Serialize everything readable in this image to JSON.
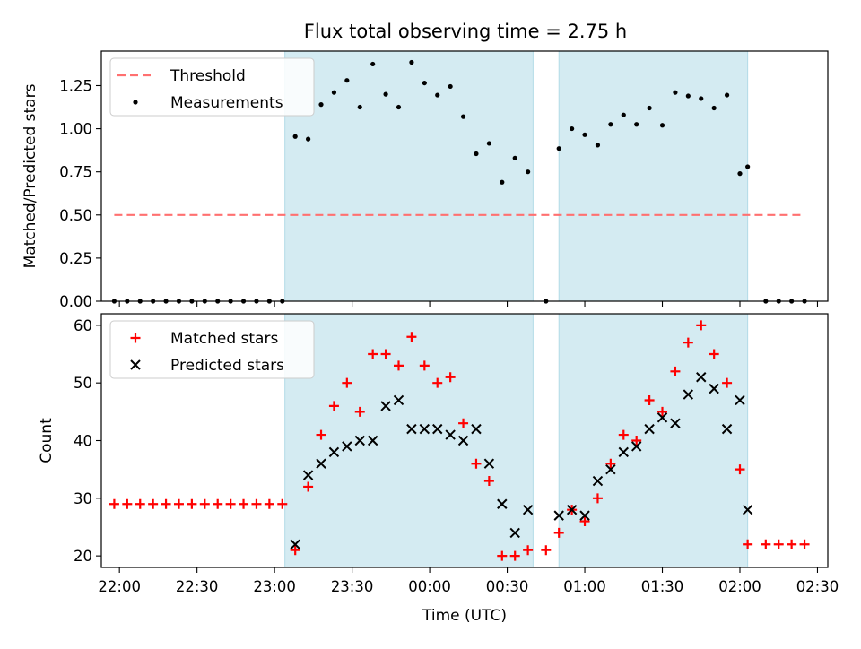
{
  "title": "Flux total observing time = 2.75 h",
  "colors": {
    "shade": "#add8e6",
    "threshold": "#ff7070",
    "measurement": "#000000",
    "matched": "#ff0000",
    "predicted": "#000000"
  },
  "chart_data": [
    {
      "type": "scatter",
      "ylabel": "Matched/Predicted stars",
      "ylim": [
        0,
        1.45
      ],
      "yticks": [
        0.0,
        0.25,
        0.5,
        0.75,
        1.0,
        1.25
      ],
      "yticklabels": [
        "0.00",
        "0.25",
        "0.50",
        "0.75",
        "1.00",
        "1.25"
      ],
      "xlim": [
        "21:53",
        "02:34"
      ],
      "shaded_intervals": [
        [
          "23:04",
          "00:40"
        ],
        [
          "00:50",
          "02:03"
        ]
      ],
      "threshold": {
        "name": "Threshold",
        "value": 0.5,
        "x": [
          "21:58",
          "02:24"
        ]
      },
      "legend": [
        "Threshold",
        "Measurements"
      ],
      "legend_location": "upper left",
      "series": [
        {
          "name": "Measurements",
          "marker": "dot",
          "x": [
            "21:58",
            "22:03",
            "22:08",
            "22:13",
            "22:18",
            "22:23",
            "22:28",
            "22:33",
            "22:38",
            "22:43",
            "22:48",
            "22:53",
            "22:58",
            "23:03",
            "23:08",
            "23:13",
            "23:18",
            "23:23",
            "23:28",
            "23:33",
            "23:38",
            "23:43",
            "23:48",
            "23:53",
            "23:58",
            "00:03",
            "00:08",
            "00:13",
            "00:18",
            "00:23",
            "00:28",
            "00:33",
            "00:38",
            "00:45",
            "00:50",
            "00:55",
            "01:00",
            "01:05",
            "01:10",
            "01:15",
            "01:20",
            "01:25",
            "01:30",
            "01:35",
            "01:40",
            "01:45",
            "01:50",
            "01:55",
            "02:00",
            "02:03",
            "02:10",
            "02:15",
            "02:20",
            "02:25"
          ],
          "y": [
            0,
            0,
            0,
            0,
            0,
            0,
            0,
            0,
            0,
            0,
            0,
            0,
            0,
            0,
            0.955,
            0.94,
            1.14,
            1.21,
            1.28,
            1.125,
            1.375,
            1.2,
            1.125,
            1.385,
            1.265,
            1.195,
            1.245,
            1.07,
            0.855,
            0.915,
            0.69,
            0.83,
            0.75,
            0,
            0.885,
            1.0,
            0.965,
            0.905,
            1.025,
            1.08,
            1.025,
            1.12,
            1.02,
            1.21,
            1.19,
            1.175,
            1.12,
            1.195,
            0.74,
            0.78,
            0,
            0,
            0,
            0
          ]
        }
      ]
    },
    {
      "type": "scatter",
      "xlabel": "Time (UTC)",
      "ylabel": "Count",
      "ylim": [
        18,
        62
      ],
      "yticks": [
        20,
        30,
        40,
        50,
        60
      ],
      "yticklabels": [
        "20",
        "30",
        "40",
        "50",
        "60"
      ],
      "xlim": [
        "21:53",
        "02:34"
      ],
      "xticks": [
        "22:00",
        "22:30",
        "23:00",
        "23:30",
        "00:00",
        "00:30",
        "01:00",
        "01:30",
        "02:00",
        "02:30"
      ],
      "xticklabels": [
        "22:00",
        "22:30",
        "23:00",
        "23:30",
        "00:00",
        "00:30",
        "01:00",
        "01:30",
        "02:00",
        "02:30"
      ],
      "shaded_intervals": [
        [
          "23:04",
          "00:40"
        ],
        [
          "00:50",
          "02:03"
        ]
      ],
      "legend": [
        "Matched stars",
        "Predicted stars"
      ],
      "legend_location": "upper left",
      "series": [
        {
          "name": "Matched stars",
          "marker": "plus",
          "x": [
            "21:58",
            "22:03",
            "22:08",
            "22:13",
            "22:18",
            "22:23",
            "22:28",
            "22:33",
            "22:38",
            "22:43",
            "22:48",
            "22:53",
            "22:58",
            "23:03",
            "23:08",
            "23:13",
            "23:18",
            "23:23",
            "23:28",
            "23:33",
            "23:38",
            "23:43",
            "23:48",
            "23:53",
            "23:58",
            "00:03",
            "00:08",
            "00:13",
            "00:18",
            "00:23",
            "00:28",
            "00:33",
            "00:38",
            "00:45",
            "00:50",
            "00:55",
            "01:00",
            "01:05",
            "01:10",
            "01:15",
            "01:20",
            "01:25",
            "01:30",
            "01:35",
            "01:40",
            "01:45",
            "01:50",
            "01:55",
            "02:00",
            "02:03",
            "02:10",
            "02:15",
            "02:20",
            "02:25"
          ],
          "y": [
            29,
            29,
            29,
            29,
            29,
            29,
            29,
            29,
            29,
            29,
            29,
            29,
            29,
            29,
            21,
            32,
            41,
            46,
            50,
            45,
            55,
            55,
            53,
            58,
            53,
            50,
            51,
            43,
            36,
            33,
            20,
            20,
            21,
            21,
            24,
            28,
            26,
            30,
            36,
            41,
            40,
            47,
            45,
            52,
            57,
            60,
            55,
            50,
            35,
            22,
            22,
            22,
            22,
            22
          ]
        },
        {
          "name": "Predicted stars",
          "marker": "x",
          "x": [
            "23:08",
            "23:13",
            "23:18",
            "23:23",
            "23:28",
            "23:33",
            "23:38",
            "23:43",
            "23:48",
            "23:53",
            "23:58",
            "00:03",
            "00:08",
            "00:13",
            "00:18",
            "00:23",
            "00:28",
            "00:33",
            "00:38",
            "00:50",
            "00:55",
            "01:00",
            "01:05",
            "01:10",
            "01:15",
            "01:20",
            "01:25",
            "01:30",
            "01:35",
            "01:40",
            "01:45",
            "01:50",
            "01:55",
            "02:00",
            "02:03"
          ],
          "y": [
            22,
            34,
            36,
            38,
            39,
            40,
            40,
            46,
            47,
            42,
            42,
            42,
            41,
            40,
            42,
            36,
            29,
            24,
            28,
            27,
            28,
            27,
            33,
            35,
            38,
            39,
            42,
            44,
            43,
            48,
            51,
            49,
            42,
            47,
            28
          ]
        }
      ]
    }
  ]
}
